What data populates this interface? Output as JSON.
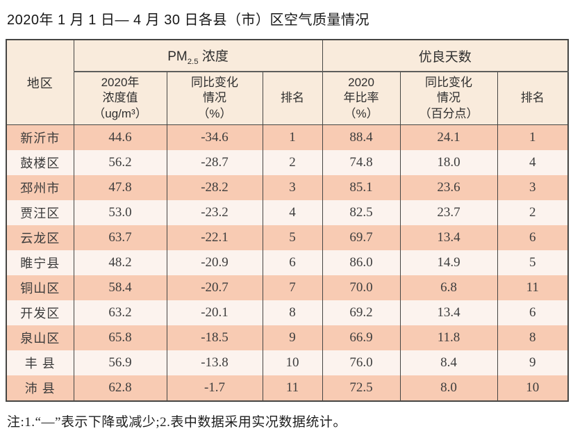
{
  "title": "2020年 1 月 1 日— 4 月 30 日各县（市）区空气质量情况",
  "table": {
    "region_header": "地区",
    "group1": {
      "prefix": "PM",
      "sub": "2.5",
      "suffix": " 浓度"
    },
    "group2": {
      "label": "优良天数"
    },
    "subheaders": [
      "2020年\n浓度值\n（ug/m³）",
      "同比变化\n情况\n（%）",
      "排名",
      "2020\n年比率\n（%）",
      "同比变化\n情况\n（百分点）",
      "排名"
    ],
    "rows": [
      [
        "新沂市",
        "44.6",
        "-34.6",
        "1",
        "88.4",
        "24.1",
        "1"
      ],
      [
        "鼓楼区",
        "56.2",
        "-28.7",
        "2",
        "74.8",
        "18.0",
        "4"
      ],
      [
        "邳州市",
        "47.8",
        "-28.2",
        "3",
        "85.1",
        "23.6",
        "3"
      ],
      [
        "贾汪区",
        "53.0",
        "-23.2",
        "4",
        "82.5",
        "23.7",
        "2"
      ],
      [
        "云龙区",
        "63.7",
        "-22.1",
        "5",
        "69.7",
        "13.4",
        "6"
      ],
      [
        "睢宁县",
        "48.2",
        "-20.9",
        "6",
        "86.0",
        "14.9",
        "5"
      ],
      [
        "铜山区",
        "58.4",
        "-20.7",
        "7",
        "70.0",
        "6.8",
        "11"
      ],
      [
        "开发区",
        "63.2",
        "-20.1",
        "8",
        "69.2",
        "13.4",
        "6"
      ],
      [
        "泉山区",
        "65.8",
        "-18.5",
        "9",
        "66.9",
        "11.8",
        "8"
      ],
      [
        "丰 县",
        "56.9",
        "-13.8",
        "10",
        "76.0",
        "8.4",
        "9"
      ],
      [
        "沛 县",
        "62.8",
        "-1.7",
        "11",
        "72.5",
        "8.0",
        "10"
      ]
    ]
  },
  "note": "注:1.“—”表示下降或减少;2.表中数据采用实况数据统计。",
  "colors": {
    "row_salmon": "#f8cbb3",
    "row_light": "#fcf3ee",
    "header_bg": "#f9ebdc",
    "border": "#454543"
  },
  "chart_data": {
    "type": "table",
    "title": "2020年1月1日—4月30日各县（市）区空气质量情况",
    "column_groups": [
      "PM2.5浓度",
      "优良天数"
    ],
    "columns": [
      "地区",
      "PM2.5 2020年浓度值（ug/m³）",
      "PM2.5 同比变化情况（%）",
      "PM2.5 排名",
      "优良天数 2020年比率（%）",
      "优良天数 同比变化情况（百分点）",
      "优良天数 排名"
    ],
    "rows": [
      [
        "新沂市",
        44.6,
        -34.6,
        1,
        88.4,
        24.1,
        1
      ],
      [
        "鼓楼区",
        56.2,
        -28.7,
        2,
        74.8,
        18.0,
        4
      ],
      [
        "邳州市",
        47.8,
        -28.2,
        3,
        85.1,
        23.6,
        3
      ],
      [
        "贾汪区",
        53.0,
        -23.2,
        4,
        82.5,
        23.7,
        2
      ],
      [
        "云龙区",
        63.7,
        -22.1,
        5,
        69.7,
        13.4,
        6
      ],
      [
        "睢宁县",
        48.2,
        -20.9,
        6,
        86.0,
        14.9,
        5
      ],
      [
        "铜山区",
        58.4,
        -20.7,
        7,
        70.0,
        6.8,
        11
      ],
      [
        "开发区",
        63.2,
        -20.1,
        8,
        69.2,
        13.4,
        6
      ],
      [
        "泉山区",
        65.8,
        -18.5,
        9,
        66.9,
        11.8,
        8
      ],
      [
        "丰县",
        56.9,
        -13.8,
        10,
        76.0,
        8.4,
        9
      ],
      [
        "沛县",
        62.8,
        -1.7,
        11,
        72.5,
        8.0,
        10
      ]
    ],
    "note": "注:1.“—”表示下降或减少;2.表中数据采用实况数据统计。"
  }
}
